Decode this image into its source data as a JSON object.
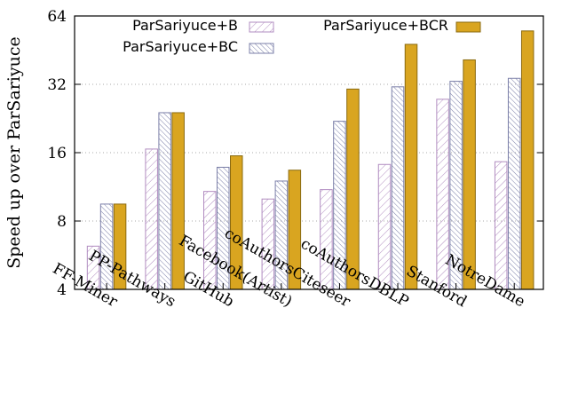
{
  "chart_data": {
    "type": "bar",
    "ylabel": "Speed up over ParSariyuce",
    "xlabel": "",
    "title": "",
    "yscale": "log2",
    "ylim": [
      4,
      64
    ],
    "yticks": [
      4,
      8,
      16,
      32,
      64
    ],
    "ytick_labels": [
      "4",
      "8",
      "16",
      "32",
      "64"
    ],
    "grid": "horizontal-dotted",
    "legend": "top",
    "categories": [
      "FF-Miner",
      "PP-Pathways",
      "GitHub",
      "Facebook(Artist)",
      "coAuthorsCiteseer",
      "coAuthorsDBLP",
      "Stanford",
      "NotreDame"
    ],
    "series": [
      {
        "name": "ParSariyuce+B",
        "fill": "pattern-b",
        "color": "#b18cc0",
        "values": [
          6.2,
          16.6,
          10.8,
          10.0,
          11.0,
          14.2,
          27.5,
          14.6
        ]
      },
      {
        "name": "ParSariyuce+BC",
        "fill": "pattern-bc",
        "color": "#7b7fa8",
        "values": [
          9.5,
          24.0,
          13.8,
          12.0,
          22.0,
          31.2,
          33.0,
          34.0
        ]
      },
      {
        "name": "ParSariyuce+BCR",
        "fill": "solid",
        "color": "#d9a520",
        "values": [
          9.5,
          24.0,
          15.5,
          13.4,
          30.5,
          48.0,
          41.0,
          55.0
        ]
      }
    ]
  }
}
